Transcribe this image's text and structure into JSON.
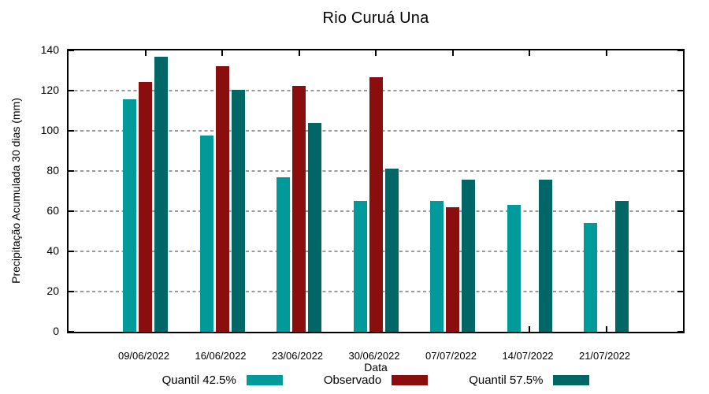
{
  "chart_data": {
    "type": "bar",
    "title": "Rio Curuá Una",
    "xlabel": "Data",
    "ylabel": "Precipitação Acumulada 30 dias (mm)",
    "ylim": [
      0,
      140
    ],
    "y_ticks": [
      0,
      20,
      40,
      60,
      80,
      100,
      120,
      140
    ],
    "grid": "horizontal dotted gray gridlines at each y tick",
    "legend_position": "bottom",
    "background_color": "#ffffff",
    "categories": [
      "09/06/2022",
      "16/06/2022",
      "23/06/2022",
      "30/06/2022",
      "07/07/2022",
      "14/07/2022",
      "21/07/2022"
    ],
    "series": [
      {
        "name": "Quantil 42.5%",
        "color": "#009a9a",
        "values": [
          115.5,
          97.5,
          77,
          65,
          65,
          63,
          54
        ]
      },
      {
        "name": "Observado",
        "color": "#8b0e0e",
        "values": [
          124.5,
          132,
          122.5,
          126.5,
          62,
          null,
          null
        ]
      },
      {
        "name": "Quantil 57.5%",
        "color": "#006666",
        "values": [
          137,
          120.5,
          104,
          81,
          75.5,
          75.5,
          65
        ]
      }
    ]
  }
}
